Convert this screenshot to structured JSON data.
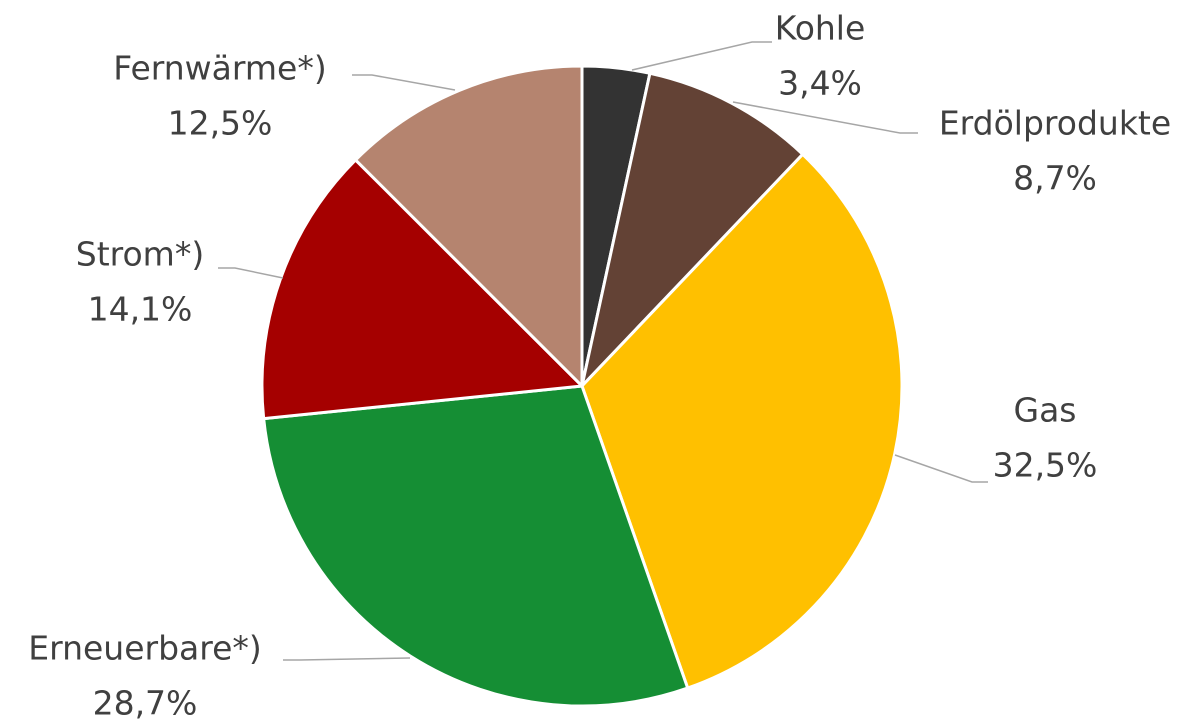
{
  "chart_data": {
    "type": "pie",
    "categories": [
      "Kohle",
      "Erdölprodukte",
      "Gas",
      "Erneuerbare*)",
      "Strom*)",
      "Fernwärme*)"
    ],
    "values": [
      3.4,
      8.7,
      32.5,
      28.7,
      14.1,
      12.5
    ],
    "value_labels": [
      "3,4%",
      "8,7%",
      "32,5%",
      "28,7%",
      "14,1%",
      "12,5%"
    ],
    "colors": [
      "#333333",
      "#634235",
      "#ffc000",
      "#158e34",
      "#a50000",
      "#b5846f"
    ]
  }
}
